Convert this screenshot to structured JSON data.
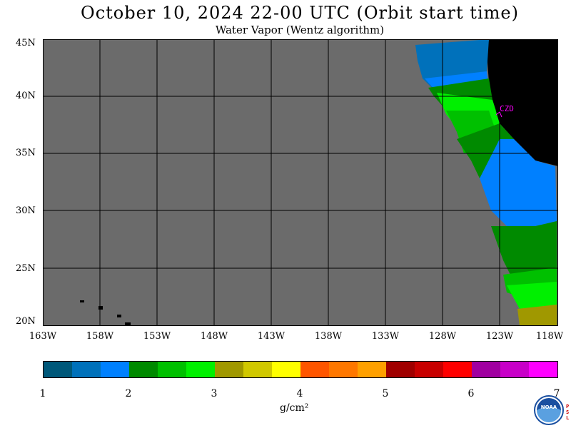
{
  "header": {
    "title": "October 10, 2024  22-00 UTC  (Orbit start time)",
    "subtitle": "Water Vapor (Wentz algorithm)"
  },
  "map": {
    "lat_labels": [
      "45N",
      "40N",
      "35N",
      "30N",
      "25N",
      "20N"
    ],
    "lon_labels": [
      "163W",
      "158W",
      "153W",
      "148W",
      "143W",
      "138W",
      "133W",
      "128W",
      "123W",
      "118W"
    ],
    "station_label": "CZD",
    "colors": {
      "ocean_nodata": "#6b6b6b",
      "land": "#000000",
      "station": "#ff00ff"
    }
  },
  "colorbar": {
    "ticks": [
      "1",
      "2",
      "3",
      "4",
      "5",
      "6",
      "7"
    ],
    "unit": "g/cm²",
    "colors": [
      "#00587a",
      "#0071bb",
      "#0080ff",
      "#008a00",
      "#00c000",
      "#00f000",
      "#a09800",
      "#d0c800",
      "#ffff00",
      "#ff5500",
      "#ff7700",
      "#ffa000",
      "#a00000",
      "#c80000",
      "#ff0000",
      "#a000a0",
      "#c800c8",
      "#ff00ff"
    ]
  },
  "logo": {
    "name": "noaa-logo",
    "text": "NOAA",
    "side_text": "PSL"
  }
}
